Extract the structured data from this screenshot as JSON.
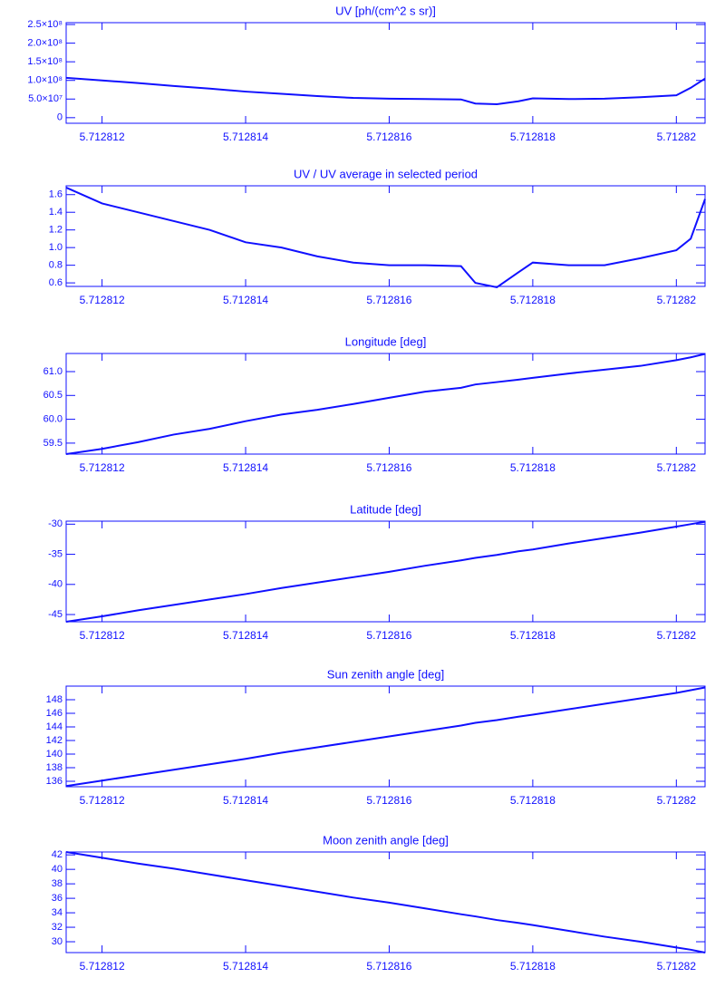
{
  "chart_data": [
    {
      "type": "line",
      "title": "UV [ph/(cm^2 s sr)]",
      "color": "#1010ff",
      "x": [
        5.7128115,
        5.712812,
        5.7128125,
        5.712813,
        5.7128135,
        5.712814,
        5.7128145,
        5.712815,
        5.7128155,
        5.712816,
        5.7128165,
        5.712817,
        5.7128172,
        5.7128175,
        5.7128178,
        5.712818,
        5.7128185,
        5.712819,
        5.7128195,
        5.71282,
        5.7128202,
        5.7128204
      ],
      "values": [
        107000000,
        100000000,
        93000000,
        85000000,
        78000000,
        70000000,
        64000000,
        58000000,
        53000000,
        51000000,
        50000000,
        49000000,
        38000000,
        36000000,
        44000000,
        52000000,
        50000000,
        51000000,
        55000000,
        60000000,
        80000000,
        105000000
      ],
      "xlim": [
        5.7128115,
        5.7128204
      ],
      "xticks": [
        5.712812,
        5.712814,
        5.712816,
        5.712818,
        5.71282
      ],
      "ylim": [
        -15000000,
        255000000
      ],
      "yticks": [
        {
          "value": 250000000,
          "label": "2.5×10⁸"
        },
        {
          "value": 200000000,
          "label": "2.0×10⁸"
        },
        {
          "value": 150000000,
          "label": "1.5×10⁸"
        },
        {
          "value": 100000000,
          "label": "1.0×10⁸"
        },
        {
          "value": 50000000,
          "label": "5.0×10⁷"
        },
        0
      ]
    },
    {
      "type": "line",
      "title": "UV / UV average in selected period",
      "color": "#1010ff",
      "x": [
        5.7128115,
        5.712812,
        5.7128125,
        5.712813,
        5.7128135,
        5.712814,
        5.7128145,
        5.712815,
        5.7128155,
        5.712816,
        5.7128165,
        5.712817,
        5.7128172,
        5.7128175,
        5.7128178,
        5.712818,
        5.7128185,
        5.712819,
        5.7128195,
        5.71282,
        5.7128202,
        5.7128204
      ],
      "values": [
        1.68,
        1.5,
        1.4,
        1.3,
        1.2,
        1.06,
        1.0,
        0.9,
        0.83,
        0.8,
        0.8,
        0.79,
        0.6,
        0.55,
        0.72,
        0.83,
        0.8,
        0.8,
        0.88,
        0.97,
        1.1,
        1.55
      ],
      "xlim": [
        5.7128115,
        5.7128204
      ],
      "xticks": [
        5.712812,
        5.712814,
        5.712816,
        5.712818,
        5.71282
      ],
      "ylim": [
        0.56,
        1.7
      ],
      "yticks": [
        0.6,
        0.8,
        {
          "value": 1,
          "label": "1.0"
        },
        1.2,
        1.4,
        1.6
      ]
    },
    {
      "type": "line",
      "title": "Longitude [deg]",
      "color": "#1010ff",
      "x": [
        5.7128115,
        5.712812,
        5.7128125,
        5.712813,
        5.7128135,
        5.712814,
        5.7128145,
        5.712815,
        5.7128155,
        5.712816,
        5.7128165,
        5.712817,
        5.7128172,
        5.7128175,
        5.7128178,
        5.712818,
        5.7128185,
        5.712819,
        5.7128195,
        5.71282,
        5.7128202,
        5.7128204
      ],
      "values": [
        59.27,
        59.38,
        59.52,
        59.68,
        59.8,
        59.96,
        60.1,
        60.2,
        60.32,
        60.45,
        60.58,
        60.66,
        60.73,
        60.78,
        60.83,
        60.87,
        60.96,
        61.04,
        61.12,
        61.24,
        61.3,
        61.37
      ],
      "xlim": [
        5.7128115,
        5.7128204
      ],
      "xticks": [
        5.712812,
        5.712814,
        5.712816,
        5.712818,
        5.71282
      ],
      "ylim": [
        59.27,
        61.38
      ],
      "yticks": [
        59.5,
        {
          "value": 60,
          "label": "60.0"
        },
        60.5,
        {
          "value": 61,
          "label": "61.0"
        }
      ]
    },
    {
      "type": "line",
      "title": "Latitude [deg]",
      "color": "#1010ff",
      "x": [
        5.7128115,
        5.712812,
        5.7128125,
        5.712813,
        5.7128135,
        5.712814,
        5.7128145,
        5.712815,
        5.7128155,
        5.712816,
        5.7128165,
        5.712817,
        5.7128172,
        5.7128175,
        5.7128178,
        5.712818,
        5.7128185,
        5.712819,
        5.7128195,
        5.71282,
        5.7128202,
        5.7128204
      ],
      "values": [
        -46.2,
        -45.3,
        -44.3,
        -43.4,
        -42.5,
        -41.6,
        -40.6,
        -39.7,
        -38.8,
        -37.9,
        -36.9,
        -36.0,
        -35.6,
        -35.1,
        -34.5,
        -34.2,
        -33.2,
        -32.3,
        -31.4,
        -30.4,
        -30.0,
        -29.6
      ],
      "xlim": [
        5.7128115,
        5.7128204
      ],
      "xticks": [
        5.712812,
        5.712814,
        5.712816,
        5.712818,
        5.71282
      ],
      "ylim": [
        -46.2,
        -29.5
      ],
      "yticks": [
        -45,
        -40,
        -35,
        -30
      ]
    },
    {
      "type": "line",
      "title": "Sun zenith angle [deg]",
      "color": "#1010ff",
      "x": [
        5.7128115,
        5.712812,
        5.7128125,
        5.712813,
        5.7128135,
        5.712814,
        5.7128145,
        5.712815,
        5.7128155,
        5.712816,
        5.7128165,
        5.712817,
        5.7128172,
        5.7128175,
        5.7128178,
        5.712818,
        5.7128185,
        5.712819,
        5.7128195,
        5.71282,
        5.7128202,
        5.7128204
      ],
      "values": [
        135.3,
        136.1,
        136.9,
        137.7,
        138.5,
        139.3,
        140.2,
        141.0,
        141.8,
        142.6,
        143.4,
        144.2,
        144.6,
        145.0,
        145.5,
        145.8,
        146.6,
        147.4,
        148.2,
        149.0,
        149.4,
        149.8
      ],
      "xlim": [
        5.7128115,
        5.7128204
      ],
      "xticks": [
        5.712812,
        5.712814,
        5.712816,
        5.712818,
        5.71282
      ],
      "ylim": [
        135.2,
        150
      ],
      "yticks": [
        136,
        138,
        140,
        142,
        144,
        146,
        148
      ]
    },
    {
      "type": "line",
      "title": "Moon zenith angle [deg]",
      "color": "#1010ff",
      "x": [
        5.7128115,
        5.712812,
        5.7128125,
        5.712813,
        5.7128135,
        5.712814,
        5.7128145,
        5.712815,
        5.7128155,
        5.712816,
        5.7128165,
        5.712817,
        5.7128172,
        5.7128175,
        5.7128178,
        5.712818,
        5.7128185,
        5.712819,
        5.7128195,
        5.71282,
        5.7128202,
        5.7128204
      ],
      "values": [
        42.4,
        41.6,
        40.8,
        40.1,
        39.3,
        38.5,
        37.7,
        36.9,
        36.1,
        35.4,
        34.6,
        33.8,
        33.5,
        33.0,
        32.6,
        32.3,
        31.5,
        30.7,
        30.0,
        29.2,
        28.9,
        28.5
      ],
      "xlim": [
        5.7128115,
        5.7128204
      ],
      "xticks": [
        5.712812,
        5.712814,
        5.712816,
        5.712818,
        5.71282
      ],
      "ylim": [
        28.5,
        42.4
      ],
      "yticks": [
        30,
        32,
        34,
        36,
        38,
        40,
        42
      ]
    }
  ]
}
